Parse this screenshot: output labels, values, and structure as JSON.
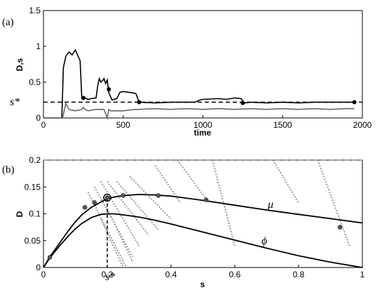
{
  "chart_data": [
    {
      "panel_label": "(a)",
      "type": "line",
      "xlabel": "time",
      "ylabel": "D,s",
      "xlim": [
        0,
        2000
      ],
      "ylim": [
        0,
        1.5
      ],
      "xticks": [
        "0",
        "500",
        "1000",
        "1500",
        "2000"
      ],
      "yticks": [
        "0",
        "0.5",
        "1",
        "1.5"
      ],
      "hline": {
        "label": "s*",
        "value": 0.22,
        "style": "dashed"
      },
      "series": [
        {
          "color": "#000000",
          "x": [
            0,
            115,
            125,
            140,
            160,
            180,
            200,
            220,
            230,
            240,
            250,
            260,
            280,
            300,
            330,
            340,
            350,
            360,
            370,
            380,
            390,
            400,
            410,
            420,
            430,
            440,
            460,
            480,
            500,
            530,
            560,
            580,
            600,
            700,
            800,
            950,
            980,
            1000,
            1100,
            1150,
            1200,
            1240,
            1260,
            1300,
            1400,
            1500,
            1600,
            1700,
            1800,
            1900,
            1950
          ],
          "y": [
            0,
            0,
            0.7,
            0.86,
            0.92,
            0.88,
            0.95,
            0.85,
            0.8,
            0.3,
            0.26,
            0.28,
            0.26,
            0.27,
            0.28,
            0.45,
            0.55,
            0.5,
            0.52,
            0.55,
            0.48,
            0.53,
            0.35,
            0.3,
            0.25,
            0.26,
            0.27,
            0.36,
            0.37,
            0.36,
            0.35,
            0.34,
            0.22,
            0.21,
            0.22,
            0.22,
            0.25,
            0.26,
            0.27,
            0.26,
            0.28,
            0.27,
            0.21,
            0.22,
            0.21,
            0.22,
            0.21,
            0.22,
            0.22,
            0.22,
            0.22
          ]
        },
        {
          "color": "#666666",
          "x": [
            0,
            120,
            140,
            160,
            200,
            240,
            250,
            260,
            280,
            300,
            330,
            380,
            400,
            410,
            420,
            500,
            580,
            600,
            700,
            800,
            900,
            1000,
            1100,
            1200,
            1300,
            1400,
            1500,
            1600,
            1700,
            1800,
            1900,
            1950
          ],
          "y": [
            0,
            0,
            0.2,
            0.12,
            0.1,
            0.12,
            0.15,
            0.12,
            0.1,
            0.11,
            0.12,
            0.12,
            0.0,
            0.12,
            0.1,
            0.1,
            0.12,
            0.12,
            0.13,
            0.12,
            0.13,
            0.12,
            0.13,
            0.12,
            0.13,
            0.12,
            0.13,
            0.12,
            0.13,
            0.12,
            0.13,
            0.13
          ]
        }
      ],
      "markers": [
        {
          "x": 250,
          "y": 0.28
        },
        {
          "x": 410,
          "y": 0.4
        },
        {
          "x": 600,
          "y": 0.22
        },
        {
          "x": 1250,
          "y": 0.21
        },
        {
          "x": 1950,
          "y": 0.22
        }
      ]
    },
    {
      "panel_label": "(b)",
      "type": "line",
      "xlabel": "s",
      "ylabel": "D",
      "xlim": [
        0,
        1
      ],
      "ylim": [
        0,
        0.2
      ],
      "xticks": [
        "0",
        "0.2",
        "0.4",
        "0.6",
        "0.8",
        "1"
      ],
      "yticks": [
        "0",
        "0.05",
        "0.1",
        "0.15",
        "0.2"
      ],
      "curves": [
        {
          "name": "μ",
          "color": "#000000",
          "x": [
            0,
            0.02,
            0.05,
            0.08,
            0.1,
            0.12,
            0.15,
            0.18,
            0.2,
            0.22,
            0.25,
            0.3,
            0.35,
            0.4,
            0.5,
            0.6,
            0.7,
            0.8,
            0.9,
            1.0
          ],
          "y": [
            0,
            0.02,
            0.045,
            0.07,
            0.085,
            0.098,
            0.112,
            0.122,
            0.128,
            0.131,
            0.134,
            0.136,
            0.135,
            0.133,
            0.125,
            0.116,
            0.107,
            0.099,
            0.091,
            0.083
          ]
        },
        {
          "name": "ϕ",
          "color": "#000000",
          "x": [
            0,
            0.02,
            0.05,
            0.08,
            0.1,
            0.12,
            0.15,
            0.18,
            0.2,
            0.22,
            0.25,
            0.3,
            0.35,
            0.4,
            0.5,
            0.6,
            0.7,
            0.8,
            0.9,
            1.0
          ],
          "y": [
            0,
            0.018,
            0.04,
            0.06,
            0.072,
            0.082,
            0.093,
            0.099,
            0.1,
            0.1,
            0.098,
            0.094,
            0.088,
            0.081,
            0.066,
            0.051,
            0.036,
            0.022,
            0.01,
            0
          ]
        }
      ],
      "s_star": {
        "label": "s*",
        "x": 0.2,
        "y": 0.13
      },
      "trajectories": [
        {
          "x": [
            0.14,
            0.26
          ],
          "y": [
            0.14,
            0.0
          ]
        },
        {
          "x": [
            0.16,
            0.28
          ],
          "y": [
            0.15,
            0.02
          ]
        },
        {
          "x": [
            0.18,
            0.3
          ],
          "y": [
            0.16,
            0.04
          ]
        },
        {
          "x": [
            0.2,
            0.33
          ],
          "y": [
            0.16,
            0.06
          ]
        },
        {
          "x": [
            0.23,
            0.36
          ],
          "y": [
            0.16,
            0.07
          ]
        },
        {
          "x": [
            0.27,
            0.4
          ],
          "y": [
            0.17,
            0.09
          ]
        },
        {
          "x": [
            0.35,
            0.43
          ],
          "y": [
            0.19,
            0.12
          ]
        },
        {
          "x": [
            0.42,
            0.52
          ],
          "y": [
            0.2,
            0.12
          ]
        },
        {
          "x": [
            0.53,
            0.6
          ],
          "y": [
            0.2,
            0.04
          ]
        },
        {
          "x": [
            0.72,
            0.8
          ],
          "y": [
            0.2,
            0.12
          ]
        },
        {
          "x": [
            0.86,
            0.96
          ],
          "y": [
            0.2,
            0.04
          ]
        },
        {
          "x": [
            0.18,
            0.25
          ],
          "y": [
            0.09,
            0.0
          ]
        },
        {
          "x": [
            0.2,
            0.28
          ],
          "y": [
            0.11,
            0.01
          ]
        }
      ],
      "points": [
        {
          "x": 0.02,
          "y": 0.019
        },
        {
          "x": 0.13,
          "y": 0.112
        },
        {
          "x": 0.16,
          "y": 0.121
        },
        {
          "x": 0.2,
          "y": 0.13
        },
        {
          "x": 0.25,
          "y": 0.134
        },
        {
          "x": 0.36,
          "y": 0.134
        },
        {
          "x": 0.51,
          "y": 0.126
        },
        {
          "x": 0.93,
          "y": 0.075
        }
      ],
      "annotations": [
        "μ",
        "ϕ",
        "s*"
      ]
    }
  ]
}
